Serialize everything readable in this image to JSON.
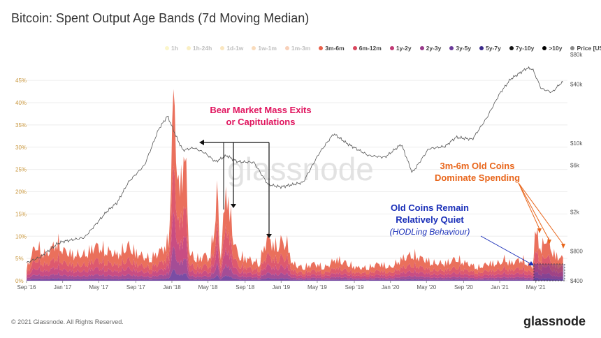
{
  "header": {
    "title": "Bitcoin: Spent Output Age Bands (7d Moving Median)"
  },
  "legend": [
    {
      "label": "1h",
      "color": "#f5e66a",
      "faded": true
    },
    {
      "label": "1h-24h",
      "color": "#f3d255",
      "faded": true
    },
    {
      "label": "1d-1w",
      "color": "#f2b84a",
      "faded": true
    },
    {
      "label": "1w-1m",
      "color": "#f09a40",
      "faded": true
    },
    {
      "label": "1m-3m",
      "color": "#ec7a39",
      "faded": true
    },
    {
      "label": "3m-6m",
      "color": "#e8604a",
      "faded": false
    },
    {
      "label": "6m-12m",
      "color": "#d9475e",
      "faded": false
    },
    {
      "label": "1y-2y",
      "color": "#c23a75",
      "faded": false
    },
    {
      "label": "2y-3y",
      "color": "#9a3a8b",
      "faded": false
    },
    {
      "label": "3y-5y",
      "color": "#6a3a9a",
      "faded": false
    },
    {
      "label": "5y-7y",
      "color": "#3a2a8a",
      "faded": false
    },
    {
      "label": "7y-10y",
      "color": "#141414",
      "faded": false
    },
    {
      "label": ">10y",
      "color": "#000000",
      "faded": false
    },
    {
      "label": "Price [USD]",
      "color": "#888888",
      "faded": false
    }
  ],
  "chart_data": {
    "type": "area",
    "title": "Bitcoin: Spent Output Age Bands (7d Moving Median)",
    "x_tick_labels": [
      "Sep '16",
      "Jan '17",
      "May '17",
      "Sep '17",
      "Jan '18",
      "May '18",
      "Sep '18",
      "Jan '19",
      "May '19",
      "Sep '19",
      "Jan '20",
      "May '20",
      "Sep '20",
      "Jan '21",
      "May '21"
    ],
    "y_left": {
      "ticks": [
        "0%",
        "5%",
        "10%",
        "15%",
        "20%",
        "25%",
        "30%",
        "35%",
        "40%",
        "45%"
      ],
      "range": [
        0,
        48
      ]
    },
    "y_right": {
      "ticks": [
        "$400",
        "$800",
        "$2k",
        "$6k",
        "$10k",
        "$40k",
        "$80k"
      ],
      "scale": "log",
      "range": [
        400,
        80000
      ]
    },
    "series": [
      {
        "name": "3m-6m",
        "color": "#e8604a"
      },
      {
        "name": "6m-12m",
        "color": "#d9475e"
      },
      {
        "name": "1y-2y",
        "color": "#c23a75"
      },
      {
        "name": "2y-3y",
        "color": "#9a3a8b"
      },
      {
        "name": "3y-5y",
        "color": "#6a3a9a"
      },
      {
        "name": "Price [USD]",
        "color": "#888888"
      }
    ],
    "spend_profile_pct": [
      [
        2016.67,
        3
      ],
      [
        2016.75,
        8
      ],
      [
        2016.85,
        6
      ],
      [
        2016.95,
        9
      ],
      [
        2017.0,
        7
      ],
      [
        2017.1,
        6
      ],
      [
        2017.2,
        6
      ],
      [
        2017.3,
        8
      ],
      [
        2017.4,
        7
      ],
      [
        2017.5,
        6
      ],
      [
        2017.6,
        8
      ],
      [
        2017.7,
        6
      ],
      [
        2017.8,
        5
      ],
      [
        2017.9,
        7
      ],
      [
        2017.97,
        9
      ],
      [
        2018.02,
        44
      ],
      [
        2018.06,
        20
      ],
      [
        2018.12,
        30
      ],
      [
        2018.16,
        6
      ],
      [
        2018.25,
        5
      ],
      [
        2018.3,
        6
      ],
      [
        2018.35,
        5
      ],
      [
        2018.42,
        21
      ],
      [
        2018.44,
        4
      ],
      [
        2018.5,
        22
      ],
      [
        2018.55,
        12
      ],
      [
        2018.6,
        6
      ],
      [
        2018.7,
        5
      ],
      [
        2018.8,
        4
      ],
      [
        2018.87,
        10
      ],
      [
        2018.95,
        8
      ],
      [
        2019.0,
        9
      ],
      [
        2019.05,
        9
      ],
      [
        2019.1,
        4
      ],
      [
        2019.2,
        3
      ],
      [
        2019.3,
        4
      ],
      [
        2019.4,
        3
      ],
      [
        2019.5,
        5
      ],
      [
        2019.6,
        4
      ],
      [
        2019.7,
        3
      ],
      [
        2019.8,
        3
      ],
      [
        2019.9,
        4
      ],
      [
        2020.0,
        3
      ],
      [
        2020.1,
        5
      ],
      [
        2020.2,
        6
      ],
      [
        2020.3,
        5
      ],
      [
        2020.4,
        4
      ],
      [
        2020.5,
        4
      ],
      [
        2020.6,
        5
      ],
      [
        2020.7,
        4
      ],
      [
        2020.8,
        3
      ],
      [
        2020.9,
        4
      ],
      [
        2021.0,
        4
      ],
      [
        2021.05,
        5
      ],
      [
        2021.1,
        4
      ],
      [
        2021.2,
        5
      ],
      [
        2021.3,
        3
      ],
      [
        2021.33,
        12
      ],
      [
        2021.38,
        7
      ],
      [
        2021.42,
        10
      ],
      [
        2021.5,
        6
      ],
      [
        2021.58,
        5
      ]
    ],
    "price_usd": [
      [
        2016.67,
        610
      ],
      [
        2016.8,
        700
      ],
      [
        2016.95,
        950
      ],
      [
        2017.0,
        1000
      ],
      [
        2017.2,
        1100
      ],
      [
        2017.4,
        2000
      ],
      [
        2017.5,
        2500
      ],
      [
        2017.6,
        4000
      ],
      [
        2017.75,
        6000
      ],
      [
        2017.88,
        14000
      ],
      [
        2017.96,
        19000
      ],
      [
        2018.05,
        11000
      ],
      [
        2018.1,
        8500
      ],
      [
        2018.2,
        9000
      ],
      [
        2018.3,
        8000
      ],
      [
        2018.4,
        6500
      ],
      [
        2018.5,
        7500
      ],
      [
        2018.6,
        6500
      ],
      [
        2018.75,
        6400
      ],
      [
        2018.88,
        3800
      ],
      [
        2019.0,
        3600
      ],
      [
        2019.2,
        4000
      ],
      [
        2019.35,
        8000
      ],
      [
        2019.48,
        12500
      ],
      [
        2019.6,
        10000
      ],
      [
        2019.8,
        7500
      ],
      [
        2019.95,
        7200
      ],
      [
        2020.1,
        9800
      ],
      [
        2020.2,
        5000
      ],
      [
        2020.35,
        8800
      ],
      [
        2020.5,
        9300
      ],
      [
        2020.6,
        11500
      ],
      [
        2020.75,
        11000
      ],
      [
        2020.88,
        18000
      ],
      [
        2021.0,
        32000
      ],
      [
        2021.1,
        45000
      ],
      [
        2021.25,
        58000
      ],
      [
        2021.3,
        57000
      ],
      [
        2021.38,
        36000
      ],
      [
        2021.48,
        33000
      ],
      [
        2021.55,
        40000
      ],
      [
        2021.58,
        42000
      ]
    ],
    "annotations": [
      {
        "text_lines": [
          "Bear Market Mass Exits",
          "or Capitulations"
        ],
        "color": "#e0145e"
      },
      {
        "text_lines": [
          "3m-6m Old Coins",
          "Dominate Spending"
        ],
        "color": "#e8661c"
      },
      {
        "text_lines": [
          "Old Coins Remain",
          "Relatively Quiet"
        ],
        "color": "#1a2fb8"
      },
      {
        "text_lines": [
          "(HODLing Behaviour)"
        ],
        "color": "#1a2fb8",
        "italic": true
      }
    ],
    "grid": true,
    "legend_position": "top"
  },
  "watermark": "glassnode",
  "footer": {
    "copyright": "© 2021 Glassnode. All Rights Reserved.",
    "brand": "glassnode"
  }
}
